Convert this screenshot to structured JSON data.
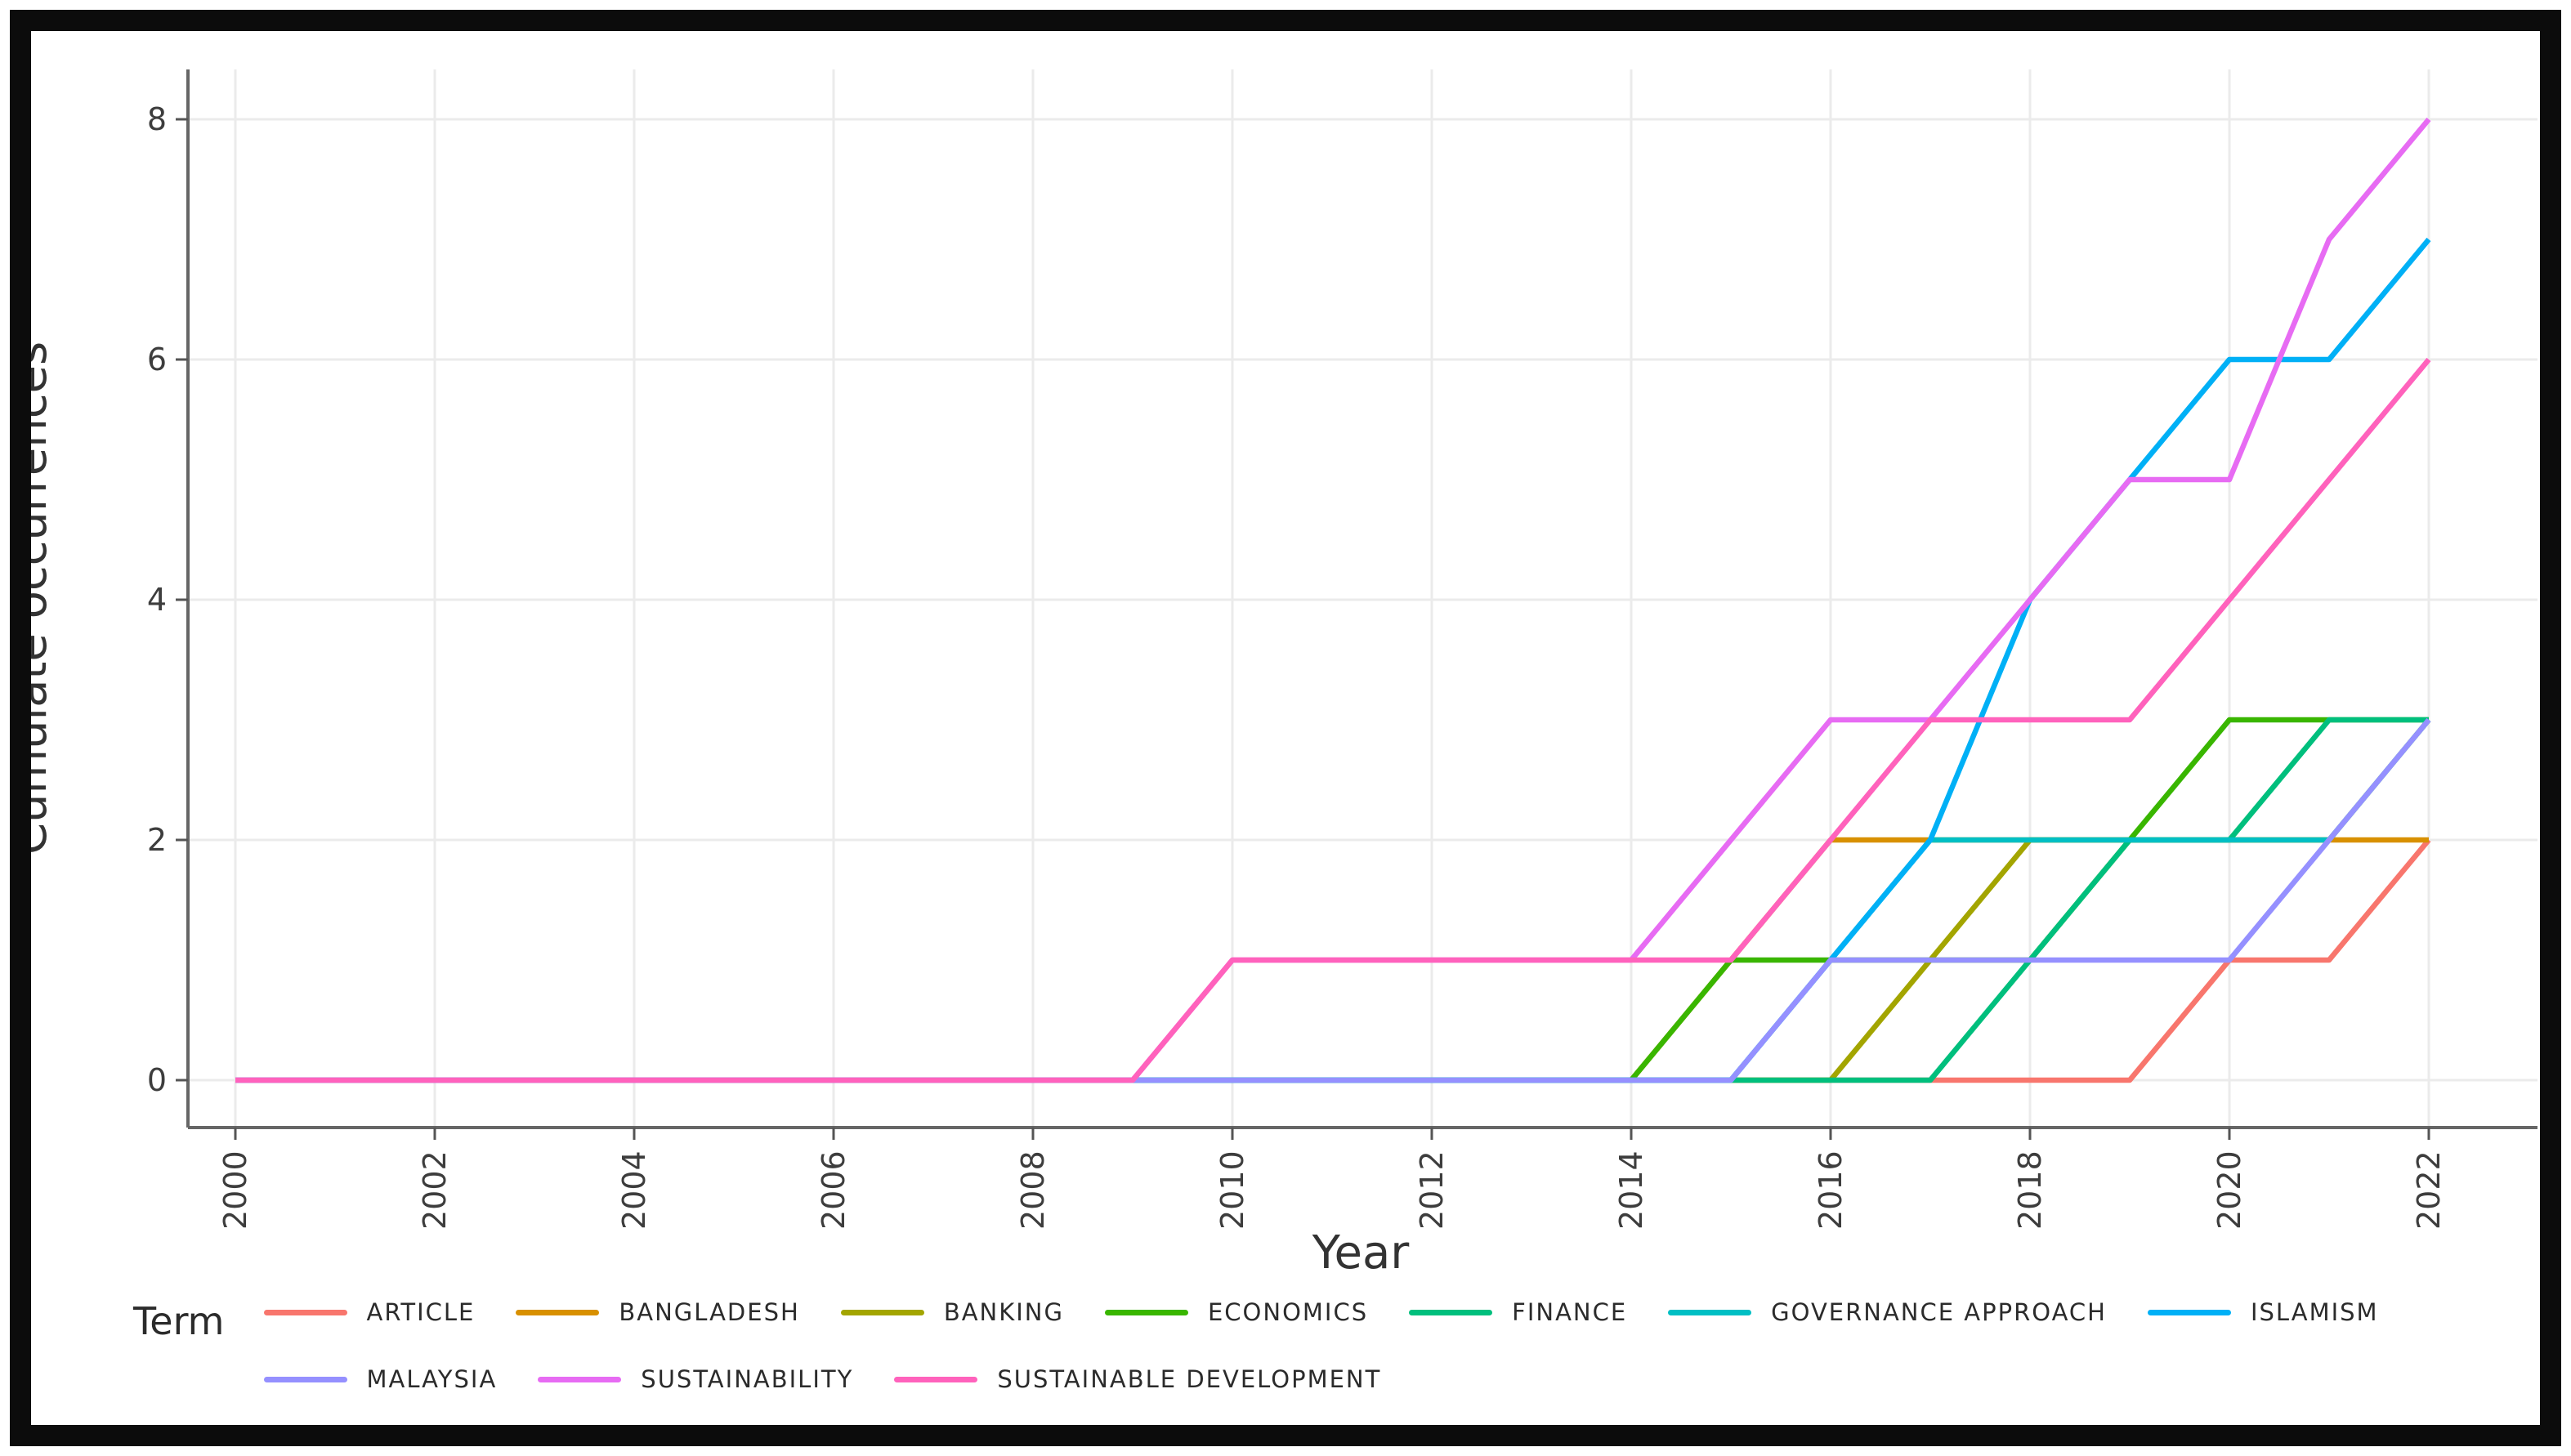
{
  "figure": {
    "legend_title": "Term"
  },
  "chart_data": {
    "type": "line",
    "title": "",
    "xlabel": "Year",
    "ylabel": "Cumulate occurrences",
    "x": [
      2000,
      2001,
      2002,
      2003,
      2004,
      2005,
      2006,
      2007,
      2008,
      2009,
      2010,
      2011,
      2012,
      2013,
      2014,
      2015,
      2016,
      2017,
      2018,
      2019,
      2020,
      2021,
      2022
    ],
    "xticks": [
      2000,
      2002,
      2004,
      2006,
      2008,
      2010,
      2012,
      2014,
      2016,
      2018,
      2020,
      2022
    ],
    "yticks": [
      0,
      2,
      4,
      6,
      8
    ],
    "xlim": [
      2000,
      2022
    ],
    "ylim": [
      0,
      8
    ],
    "grid": true,
    "legend_position": "bottom",
    "series": [
      {
        "name": "ARTICLE",
        "color": "#F8766D",
        "values": [
          0,
          0,
          0,
          0,
          0,
          0,
          0,
          0,
          0,
          0,
          0,
          0,
          0,
          0,
          0,
          0,
          0,
          0,
          0,
          0,
          1,
          1,
          2
        ]
      },
      {
        "name": "BANGLADESH",
        "color": "#D89000",
        "values": [
          0,
          0,
          0,
          0,
          0,
          0,
          0,
          0,
          0,
          0,
          0,
          0,
          0,
          0,
          0,
          1,
          2,
          2,
          2,
          2,
          2,
          2,
          2
        ]
      },
      {
        "name": "BANKING",
        "color": "#A3A500",
        "values": [
          0,
          0,
          0,
          0,
          0,
          0,
          0,
          0,
          0,
          0,
          0,
          0,
          0,
          0,
          0,
          0,
          0,
          1,
          2,
          2,
          2,
          2,
          3
        ]
      },
      {
        "name": "ECONOMICS",
        "color": "#39B600",
        "values": [
          0,
          0,
          0,
          0,
          0,
          0,
          0,
          0,
          0,
          0,
          0,
          0,
          0,
          0,
          0,
          1,
          1,
          1,
          1,
          2,
          3,
          3,
          3
        ]
      },
      {
        "name": "FINANCE",
        "color": "#00BF7D",
        "values": [
          0,
          0,
          0,
          0,
          0,
          0,
          0,
          0,
          0,
          0,
          0,
          0,
          0,
          0,
          0,
          0,
          0,
          0,
          1,
          2,
          2,
          3,
          3
        ]
      },
      {
        "name": "GOVERNANCE APPROACH",
        "color": "#00BFC4",
        "values": [
          0,
          0,
          0,
          0,
          0,
          0,
          0,
          0,
          0,
          0,
          0,
          0,
          0,
          0,
          0,
          0,
          1,
          2,
          2,
          2,
          2,
          2,
          3
        ]
      },
      {
        "name": "ISLAMISM",
        "color": "#00B0F6",
        "values": [
          0,
          0,
          0,
          0,
          0,
          0,
          0,
          0,
          0,
          0,
          0,
          0,
          0,
          0,
          0,
          0,
          1,
          2,
          4,
          5,
          6,
          6,
          7
        ]
      },
      {
        "name": "MALAYSIA",
        "color": "#9590FF",
        "values": [
          0,
          0,
          0,
          0,
          0,
          0,
          0,
          0,
          0,
          0,
          0,
          0,
          0,
          0,
          0,
          0,
          1,
          1,
          1,
          1,
          1,
          2,
          3
        ]
      },
      {
        "name": "SUSTAINABILITY",
        "color": "#E76BF3",
        "values": [
          0,
          0,
          0,
          0,
          0,
          0,
          0,
          0,
          0,
          0,
          1,
          1,
          1,
          1,
          1,
          2,
          3,
          3,
          4,
          5,
          5,
          7,
          8
        ]
      },
      {
        "name": "SUSTAINABLE DEVELOPMENT",
        "color": "#FF62BC",
        "values": [
          0,
          0,
          0,
          0,
          0,
          0,
          0,
          0,
          0,
          0,
          1,
          1,
          1,
          1,
          1,
          1,
          2,
          3,
          3,
          3,
          4,
          5,
          6
        ]
      }
    ]
  },
  "legend": {
    "title": "Term",
    "rows": [
      [
        "ARTICLE",
        "BANGLADESH",
        "BANKING",
        "ECONOMICS",
        "FINANCE",
        "GOVERNANCE APPROACH",
        "ISLAMISM"
      ],
      [
        "MALAYSIA",
        "SUSTAINABILITY",
        "SUSTAINABLE DEVELOPMENT"
      ]
    ]
  }
}
